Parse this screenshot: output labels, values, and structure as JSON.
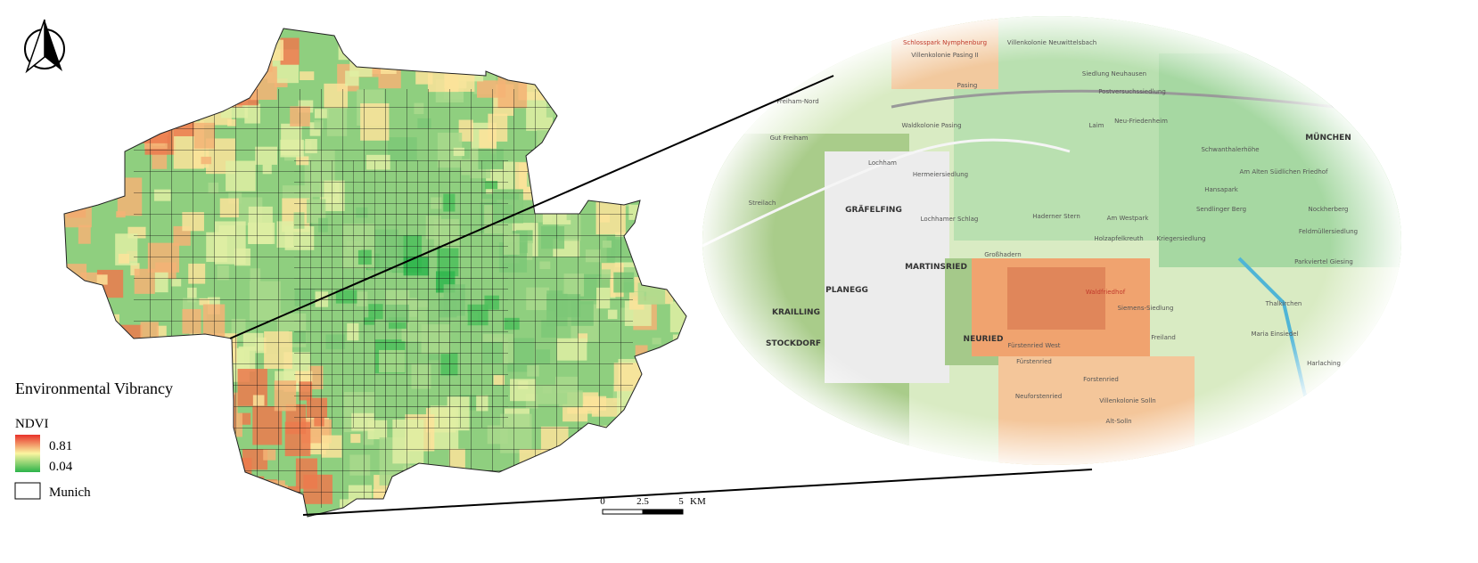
{
  "legend": {
    "title": "Environmental Vibrancy",
    "index": "NDVI",
    "high": "0.81",
    "low": "0.04",
    "boundary": "Munich"
  },
  "scale_bar": {
    "labels": [
      "0",
      "2.5",
      "5"
    ],
    "unit": "KM"
  },
  "map_labels": [
    "Schlosspark Nymphenburg",
    "Villenkolonie Neuwittelsbach",
    "Villenkolonie Pasing II",
    "Siedlung Neuhausen",
    "Pasing",
    "Postversuchssiedlung",
    "Freiham-Nord",
    "Waldkolonie Pasing",
    "Laim",
    "Neu-Friedenheim",
    "Gut Freiham",
    "MÜNCHEN",
    "Schwanthalerhöhe",
    "Lochham",
    "Hermeiersiedlung",
    "Am Alten Südlichen Friedhof",
    "Hansapark",
    "Streilach",
    "GRÄFELFING",
    "Lochhamer Schlag",
    "Haderner Stern",
    "Am Westpark",
    "Sendlinger Berg",
    "Nockherberg",
    "Holzapfelkreuth",
    "Kriegersiedlung",
    "Feldmüllersiedlung",
    "Großhadern",
    "MARTINSRIED",
    "Parkviertel Giesing",
    "PLANEGG",
    "Waldfriedhof",
    "Siemens-Siedlung",
    "Thalkirchen",
    "KRAILLING",
    "NEURIED",
    "STOCKDORF",
    "Fürstenried West",
    "Freiland",
    "Maria Einsiedel",
    "Fürstenried",
    "Forstenried",
    "Harlaching",
    "Neuforstenried",
    "Villenkolonie Solln",
    "Alt-Solln"
  ]
}
